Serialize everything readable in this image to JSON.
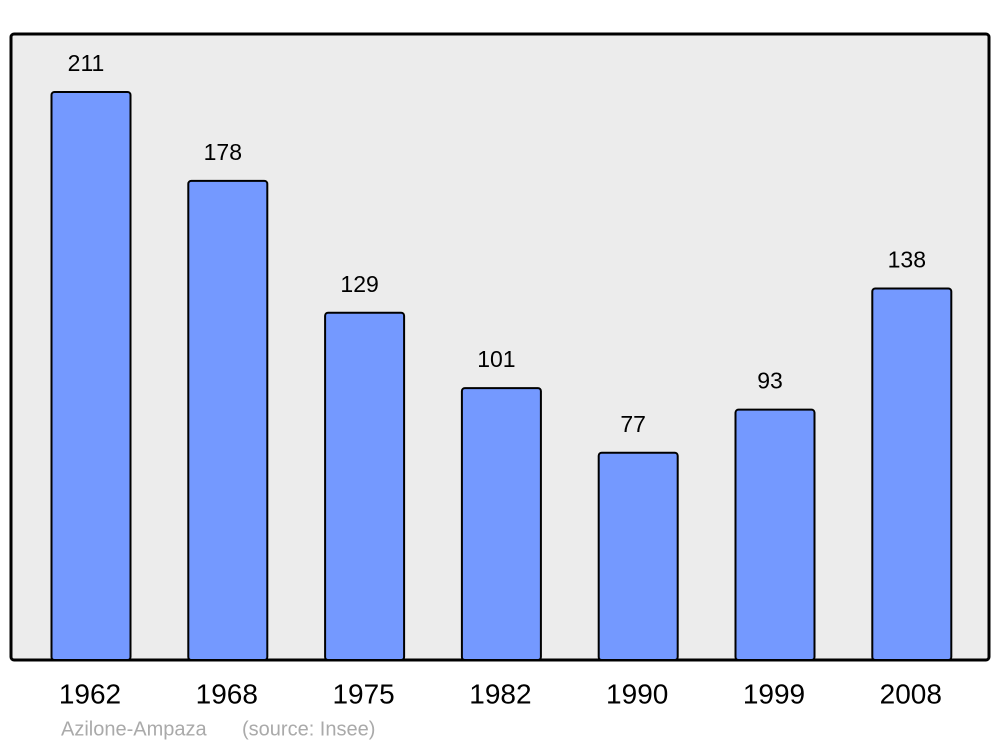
{
  "chart_data": {
    "type": "bar",
    "categories": [
      "1962",
      "1968",
      "1975",
      "1982",
      "1990",
      "1999",
      "2008"
    ],
    "values": [
      211,
      178,
      129,
      101,
      77,
      93,
      138
    ],
    "color": "#7499ff",
    "place": "Azilone-Ampaza",
    "source": "(source: Insee)"
  }
}
